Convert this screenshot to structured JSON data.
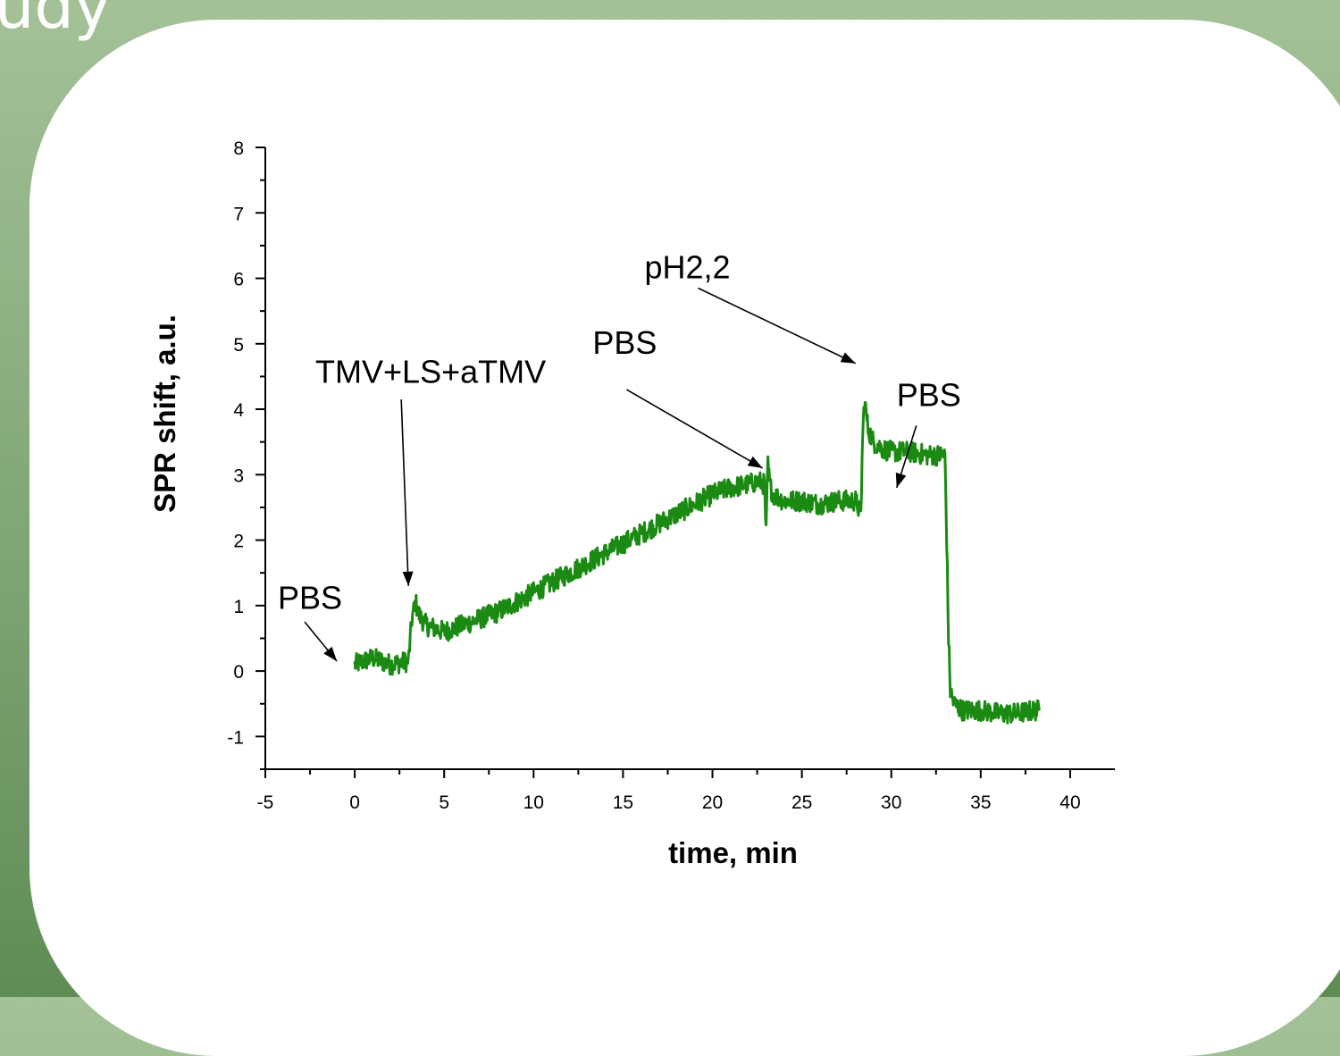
{
  "slide": {
    "title": "udy"
  },
  "chart_data": {
    "type": "line",
    "xlabel": "time, min",
    "ylabel": "SPR shift, a.u.",
    "xlim": [
      -5,
      42.5
    ],
    "ylim": [
      -1.5,
      8
    ],
    "xticks": [
      -5,
      0,
      5,
      10,
      15,
      20,
      25,
      30,
      35,
      40
    ],
    "yticks": [
      -1,
      0,
      1,
      2,
      3,
      4,
      5,
      6,
      7,
      8
    ],
    "grid": false,
    "color": "#1a8a12",
    "series": [
      {
        "x": [
          0.0,
          1.0,
          2.0,
          3.0,
          3.2,
          3.4,
          3.6,
          4.0,
          4.5,
          5.0,
          6.0,
          7.0,
          8.0,
          9.0,
          10.0,
          11.0,
          12.0,
          13.0,
          14.0,
          15.0,
          16.0,
          17.0,
          18.0,
          19.0,
          20.0,
          21.0,
          22.0,
          22.6,
          22.9,
          23.0,
          23.1,
          23.2,
          23.4,
          24.0,
          25.0,
          26.0,
          27.0,
          28.0,
          28.3,
          28.4,
          28.5,
          28.7,
          29.0,
          29.5,
          30.0,
          31.0,
          32.0,
          33.0,
          33.1,
          33.2,
          33.3,
          33.5,
          34.0,
          35.0,
          36.0,
          37.0,
          38.0,
          38.3
        ],
        "y": [
          0.1,
          0.2,
          0.1,
          0.15,
          0.8,
          1.05,
          0.85,
          0.7,
          0.65,
          0.6,
          0.7,
          0.8,
          0.9,
          1.05,
          1.2,
          1.35,
          1.5,
          1.65,
          1.8,
          1.95,
          2.1,
          2.25,
          2.4,
          2.55,
          2.7,
          2.8,
          2.85,
          2.9,
          2.85,
          2.1,
          3.2,
          2.85,
          2.7,
          2.6,
          2.6,
          2.55,
          2.6,
          2.6,
          2.4,
          3.6,
          4.15,
          3.7,
          3.5,
          3.4,
          3.35,
          3.35,
          3.3,
          3.3,
          2.0,
          0.5,
          -0.3,
          -0.5,
          -0.6,
          -0.6,
          -0.65,
          -0.65,
          -0.6,
          -0.6
        ]
      }
    ],
    "annotations": [
      {
        "text": "PBS",
        "x": -4.3,
        "y": 0.95,
        "arrow_from": [
          -2.8,
          0.75
        ],
        "arrow_to": [
          -1.0,
          0.15
        ]
      },
      {
        "text": "TMV+LS+aTMV",
        "x": -2.2,
        "y": 4.4,
        "arrow_from": [
          2.6,
          4.15
        ],
        "arrow_to": [
          3.0,
          1.3
        ]
      },
      {
        "text": "PBS",
        "x": 13.3,
        "y": 4.85,
        "arrow_from": [
          15.2,
          4.3
        ],
        "arrow_to": [
          22.8,
          3.1
        ]
      },
      {
        "text": "pH2,2",
        "x": 16.2,
        "y": 6.0,
        "arrow_from": [
          19.2,
          5.85
        ],
        "arrow_to": [
          28.0,
          4.7
        ]
      },
      {
        "text": "PBS",
        "x": 30.3,
        "y": 4.05,
        "arrow_from": [
          31.4,
          3.75
        ],
        "arrow_to": [
          30.3,
          2.8
        ]
      }
    ]
  }
}
